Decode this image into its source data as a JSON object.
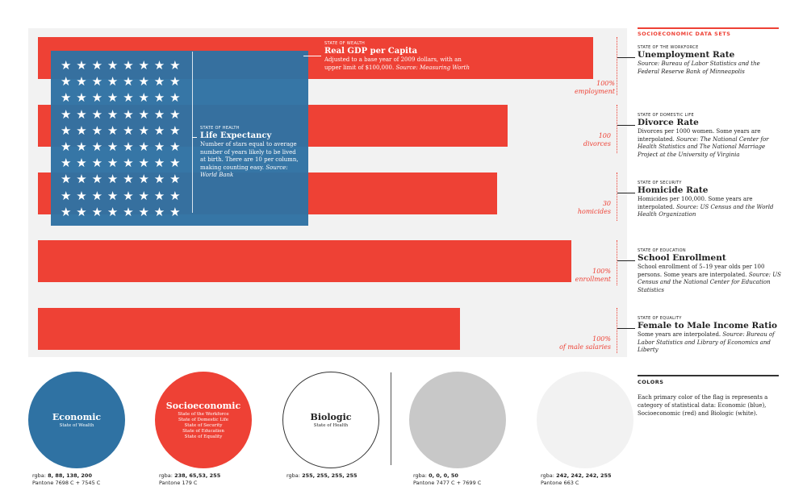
{
  "flag": {
    "bars": [
      {
        "label_line1": "100%",
        "label_line2": "employment"
      },
      {
        "label_line1": "100",
        "label_line2": "divorces"
      },
      {
        "label_line1": "30",
        "label_line2": "homicides"
      },
      {
        "label_line1": "100%",
        "label_line2": "enrollment"
      },
      {
        "label_line1": "100%",
        "label_line2": "of male salaries"
      }
    ],
    "star_glyph": "★",
    "wealth": {
      "kicker": "STATE OF WEALTH",
      "title": "Real GDP per Capita",
      "desc": "Adjusted to a base year of 2009 dollars, with an upper limit of $100,000.",
      "source": "Source: Measuring Worth"
    },
    "health": {
      "kicker": "STATE OF HEALTH",
      "title": "Life Expectancy",
      "desc": "Number of stars equal to average number of years likely to be lived at birth. There are 10 per column, making counting easy.",
      "source": "Source: World Bank"
    }
  },
  "sidebar": {
    "heading": "SOCIOECONOMIC DATA SETS",
    "items": [
      {
        "kicker": "STATE OF THE WORKFORCE",
        "title": "Unemployment Rate",
        "desc": "",
        "source": "Source: Bureau of Labor Statistics and the Federal Reserve Bank of Minneapolis"
      },
      {
        "kicker": "STATE OF DOMESTIC LIFE",
        "title": "Divorce Rate",
        "desc": "Divorces per 1000 women. Some years are interpolated.",
        "source": "Source: The National Center for Health Statistics and The National Marriage Project at the University of Virginia"
      },
      {
        "kicker": "STATE OF SECURITY",
        "title": "Homicide Rate",
        "desc": "Homicides per 100,000. Some years are interpolated.",
        "source": "Source: US Census and the World Health Organization"
      },
      {
        "kicker": "STATE OF EDUCATION",
        "title": "School Enrollment",
        "desc": "School enrollment of 5–19 year olds per 100 persons. Some years are interpolated.",
        "source": "Source: US Census and the National Center for Education Statistics"
      },
      {
        "kicker": "STATE OF EQUALITY",
        "title": "Female to Male Income Ratio",
        "desc": "Some years are interpolated.",
        "source": "Source: Bureau of Labor Statistics and Library of Economics and Liberty"
      }
    ]
  },
  "colors_section": {
    "heading": "COLORS",
    "desc": "Each primary color of the flag is represents a category of statistical data: Economic (blue), Socioeconomic (red) and Biologic (white).",
    "swatches": [
      {
        "name": "Economic",
        "sub": [
          "State of Wealth"
        ],
        "rgba_label": "rgba: ",
        "rgba": "8, 88, 138, 200",
        "pantone": "Pantone 7698 C + 7545 C",
        "fill": "#2f72a3",
        "text_color": "#ffffff",
        "border": "none"
      },
      {
        "name": "Socioeconomic",
        "sub": [
          "State of the Workforce",
          "State of Domestic Life",
          "State of Security",
          "State of Education",
          "State of Equality"
        ],
        "rgba_label": "rgba: ",
        "rgba": "238, 65,53, 255",
        "pantone": "Pantone 179 C",
        "fill": "#ee4135",
        "text_color": "#ffffff",
        "border": "none"
      },
      {
        "name": "Biologic",
        "sub": [
          "State of Health"
        ],
        "rgba_label": "rgba: ",
        "rgba": "255, 255, 255, 255",
        "pantone": "",
        "fill": "#ffffff",
        "text_color": "#222222",
        "border": "1px solid #333"
      },
      {
        "name": "",
        "sub": [],
        "rgba_label": "rgba: ",
        "rgba": "0, 0, 0, 50",
        "pantone": "Pantone 7477 C + 7699 C",
        "fill": "#c8c8c8",
        "text_color": "#222222",
        "border": "none"
      },
      {
        "name": "",
        "sub": [],
        "rgba_label": "rgba: ",
        "rgba": "242, 242, 242, 255",
        "pantone": "Pantone 663 C",
        "fill": "#f2f2f2",
        "text_color": "#222222",
        "border": "none"
      }
    ]
  },
  "accent_colors": {
    "red": "#ee4135",
    "blue": "#2f72a3",
    "gray_panel": "#f2f2f2"
  }
}
